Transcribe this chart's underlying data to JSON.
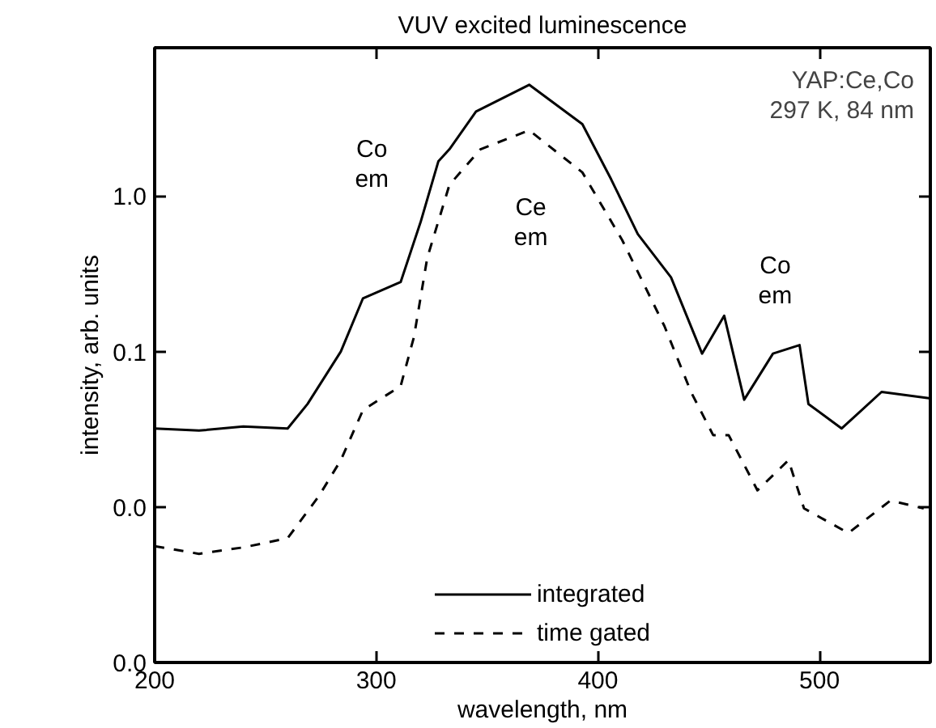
{
  "chart_data": {
    "type": "line",
    "title": "VUV excited luminescence",
    "xlabel": "wavelength, nm",
    "ylabel": "intensity, arb. units",
    "log": "y",
    "xlim": [
      200,
      550
    ],
    "ylim": [
      0.001,
      9
    ],
    "xticks": [
      200,
      300,
      400,
      500
    ],
    "yticks": [
      {
        "value": 0.001,
        "label": "0.0"
      },
      {
        "value": 0.01,
        "label": "0.0"
      },
      {
        "value": 0.1,
        "label": "0.1"
      },
      {
        "value": 1,
        "label": "1.0"
      }
    ],
    "grid": false,
    "legend": "bottom",
    "annotations": [
      "YAP:Ce,Co\n297 K, 84 nm",
      "Co\nem",
      "Ce\nem",
      "Co\nem"
    ],
    "series": [
      {
        "name": "integrated",
        "color": "#000000",
        "line_style": "solid",
        "x": [
          200,
          220,
          240,
          260,
          269,
          284,
          294,
          311,
          320,
          328,
          333,
          345,
          369,
          393,
          406,
          418,
          433,
          447,
          457,
          466,
          479,
          491,
          495,
          510,
          528,
          550
        ],
        "values": [
          0.032,
          0.031,
          0.033,
          0.032,
          0.046,
          0.1,
          0.22,
          0.28,
          0.68,
          1.67,
          2.0,
          3.5,
          5.2,
          2.9,
          1.28,
          0.57,
          0.3,
          0.097,
          0.17,
          0.049,
          0.097,
          0.11,
          0.046,
          0.032,
          0.055,
          0.05
        ]
      },
      {
        "name": "time gated",
        "color": "#000000",
        "line_style": "dashed",
        "x": [
          200,
          220,
          240,
          260,
          274,
          284,
          294,
          311,
          317,
          323,
          333,
          347,
          369,
          393,
          411,
          430,
          442,
          452,
          459,
          472,
          486,
          493,
          513,
          532,
          547
        ],
        "values": [
          0.0056,
          0.005,
          0.0055,
          0.0063,
          0.0117,
          0.02,
          0.042,
          0.06,
          0.124,
          0.4,
          1.18,
          2.0,
          2.65,
          1.42,
          0.52,
          0.146,
          0.055,
          0.029,
          0.029,
          0.0128,
          0.02,
          0.0098,
          0.0068,
          0.011,
          0.0098
        ]
      }
    ]
  }
}
